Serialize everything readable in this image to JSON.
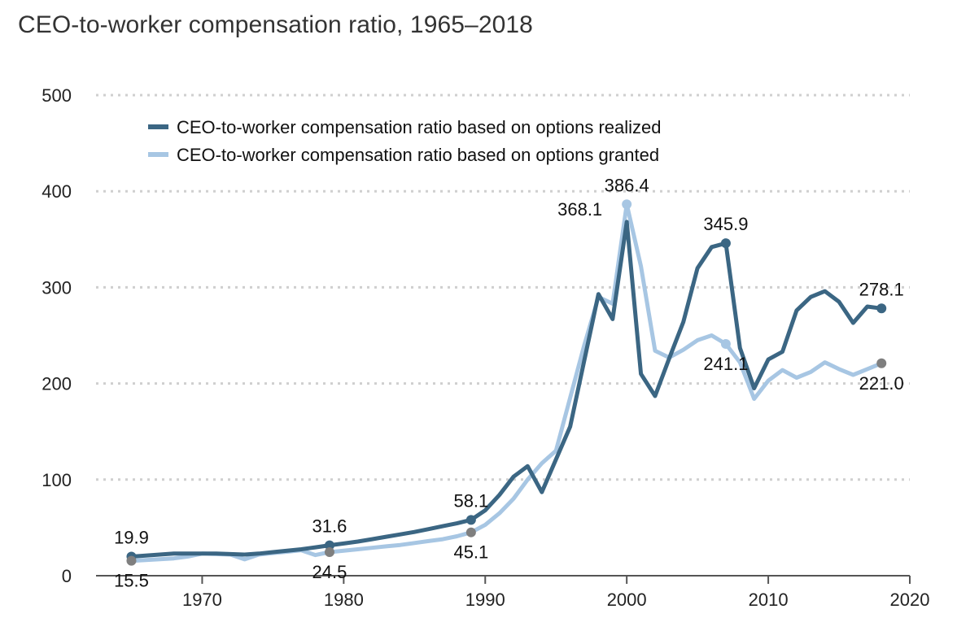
{
  "chart_data": {
    "type": "line",
    "title": "CEO-to-worker compensation ratio, 1965–2018",
    "xlabel": "",
    "ylabel": "",
    "xlim": [
      1962.5,
      2020
    ],
    "ylim": [
      0,
      500
    ],
    "x_ticks": [
      1970,
      1980,
      1990,
      2000,
      2010,
      2020
    ],
    "y_ticks": [
      0,
      100,
      200,
      300,
      400,
      500
    ],
    "grid": "horizontal-dotted",
    "legend_position": "top-left",
    "colors": {
      "realized": "#3b6683",
      "granted": "#a7c6e3",
      "marker_gray": "#7f7f7f"
    },
    "series": [
      {
        "name": "CEO-to-worker compensation ratio based on options realized",
        "color": "#3b6683",
        "points": [
          [
            1965,
            19.9
          ],
          [
            1968,
            23
          ],
          [
            1969,
            23
          ],
          [
            1970,
            23
          ],
          [
            1971,
            23
          ],
          [
            1972,
            22.5
          ],
          [
            1973,
            22
          ],
          [
            1974,
            23
          ],
          [
            1975,
            24.5
          ],
          [
            1976,
            26
          ],
          [
            1977,
            27.5
          ],
          [
            1978,
            29.5
          ],
          [
            1979,
            31.6
          ],
          [
            1980,
            33.5
          ],
          [
            1981,
            35.5
          ],
          [
            1982,
            38
          ],
          [
            1983,
            40.5
          ],
          [
            1984,
            43
          ],
          [
            1985,
            45.5
          ],
          [
            1986,
            48.5
          ],
          [
            1987,
            51.5
          ],
          [
            1988,
            54.5
          ],
          [
            1989,
            58.1
          ],
          [
            1990,
            68
          ],
          [
            1991,
            84
          ],
          [
            1992,
            103
          ],
          [
            1993,
            114
          ],
          [
            1994,
            87
          ],
          [
            1995,
            121
          ],
          [
            1996,
            155
          ],
          [
            1997,
            224
          ],
          [
            1998,
            293
          ],
          [
            1999,
            267
          ],
          [
            2000,
            368.1
          ],
          [
            2001,
            210
          ],
          [
            2002,
            187
          ],
          [
            2003,
            226
          ],
          [
            2004,
            264
          ],
          [
            2005,
            320
          ],
          [
            2006,
            342
          ],
          [
            2007,
            345.9
          ],
          [
            2008,
            237
          ],
          [
            2009,
            195
          ],
          [
            2010,
            225
          ],
          [
            2011,
            233
          ],
          [
            2012,
            276
          ],
          [
            2013,
            290
          ],
          [
            2014,
            296
          ],
          [
            2015,
            285
          ],
          [
            2016,
            263
          ],
          [
            2017,
            280
          ],
          [
            2018,
            278.1
          ]
        ]
      },
      {
        "name": "CEO-to-worker compensation ratio based on options granted",
        "color": "#a7c6e3",
        "points": [
          [
            1965,
            15.5
          ],
          [
            1968,
            18
          ],
          [
            1969,
            20
          ],
          [
            1970,
            23
          ],
          [
            1971,
            22.5
          ],
          [
            1972,
            22
          ],
          [
            1973,
            17
          ],
          [
            1974,
            22
          ],
          [
            1975,
            23.5
          ],
          [
            1976,
            25
          ],
          [
            1977,
            26.5
          ],
          [
            1978,
            21.5
          ],
          [
            1979,
            24.5
          ],
          [
            1980,
            26
          ],
          [
            1981,
            27.5
          ],
          [
            1982,
            29
          ],
          [
            1983,
            30.5
          ],
          [
            1984,
            32
          ],
          [
            1985,
            34
          ],
          [
            1986,
            36
          ],
          [
            1987,
            38
          ],
          [
            1988,
            41
          ],
          [
            1989,
            45.1
          ],
          [
            1990,
            53
          ],
          [
            1991,
            65
          ],
          [
            1992,
            80
          ],
          [
            1993,
            100
          ],
          [
            1994,
            117
          ],
          [
            1995,
            130
          ],
          [
            1996,
            185
          ],
          [
            1997,
            240
          ],
          [
            1998,
            290
          ],
          [
            1999,
            283
          ],
          [
            2000,
            386.4
          ],
          [
            2001,
            322
          ],
          [
            2002,
            234
          ],
          [
            2003,
            227
          ],
          [
            2004,
            235
          ],
          [
            2005,
            245
          ],
          [
            2006,
            250
          ],
          [
            2007,
            241.1
          ],
          [
            2008,
            222
          ],
          [
            2009,
            184
          ],
          [
            2010,
            203
          ],
          [
            2011,
            214
          ],
          [
            2012,
            206
          ],
          [
            2013,
            212
          ],
          [
            2014,
            222
          ],
          [
            2015,
            215
          ],
          [
            2016,
            209
          ],
          [
            2017,
            215
          ],
          [
            2018,
            221.0
          ]
        ]
      }
    ],
    "annotations": [
      {
        "year": 1965,
        "value": 19.9,
        "label": "19.9",
        "series": 0,
        "marker": "#3b6683",
        "pos": "above"
      },
      {
        "year": 1965,
        "value": 15.5,
        "label": "15.5",
        "series": 1,
        "marker": "#7f7f7f",
        "pos": "below"
      },
      {
        "year": 1979,
        "value": 31.6,
        "label": "31.6",
        "series": 0,
        "marker": "#3b6683",
        "pos": "above"
      },
      {
        "year": 1979,
        "value": 24.5,
        "label": "24.5",
        "series": 1,
        "marker": "#7f7f7f",
        "pos": "below"
      },
      {
        "year": 1989,
        "value": 58.1,
        "label": "58.1",
        "series": 0,
        "marker": "#3b6683",
        "pos": "above"
      },
      {
        "year": 1989,
        "value": 45.1,
        "label": "45.1",
        "series": 1,
        "marker": "#7f7f7f",
        "pos": "below"
      },
      {
        "year": 2000,
        "value": 368.1,
        "label": "368.1",
        "series": 0,
        "marker": "none",
        "pos": "left"
      },
      {
        "year": 2000,
        "value": 386.4,
        "label": "386.4",
        "series": 1,
        "marker": "#a7c6e3",
        "pos": "above"
      },
      {
        "year": 2007,
        "value": 345.9,
        "label": "345.9",
        "series": 0,
        "marker": "#3b6683",
        "pos": "above"
      },
      {
        "year": 2007,
        "value": 241.1,
        "label": "241.1",
        "series": 1,
        "marker": "#a7c6e3",
        "pos": "below"
      },
      {
        "year": 2018,
        "value": 278.1,
        "label": "278.1",
        "series": 0,
        "marker": "#3b6683",
        "pos": "above"
      },
      {
        "year": 2018,
        "value": 221.0,
        "label": "221.0",
        "series": 1,
        "marker": "#7f7f7f",
        "pos": "below"
      }
    ]
  }
}
